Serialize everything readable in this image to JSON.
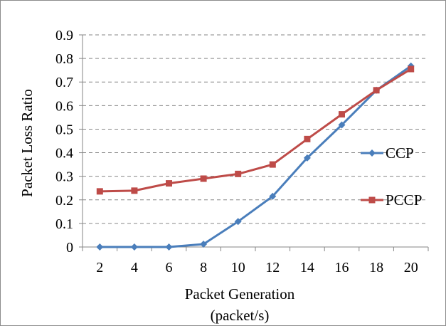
{
  "chart_data": {
    "type": "line",
    "title": "",
    "xlabel_line1": "Packet Generation",
    "xlabel_line2": "(packet/s)",
    "ylabel": "Packet Loss Ratio",
    "categories": [
      "2",
      "4",
      "6",
      "8",
      "10",
      "12",
      "14",
      "16",
      "18",
      "20"
    ],
    "ylim": [
      0,
      0.9
    ],
    "yticks": [
      "0",
      "0.1",
      "0.2",
      "0.3",
      "0.4",
      "0.5",
      "0.6",
      "0.7",
      "0.8",
      "0.9"
    ],
    "grid": "horizontal dashed",
    "legend_position": "right",
    "series": [
      {
        "name": "CCP",
        "color": "#4a7ebb",
        "marker": "diamond",
        "values": [
          0.0,
          0.0,
          0.0,
          0.012,
          0.108,
          0.215,
          0.378,
          0.518,
          0.665,
          0.768
        ]
      },
      {
        "name": "PCCP",
        "color": "#be4b48",
        "marker": "square",
        "values": [
          0.236,
          0.239,
          0.27,
          0.29,
          0.31,
          0.35,
          0.458,
          0.563,
          0.665,
          0.755
        ]
      }
    ]
  }
}
